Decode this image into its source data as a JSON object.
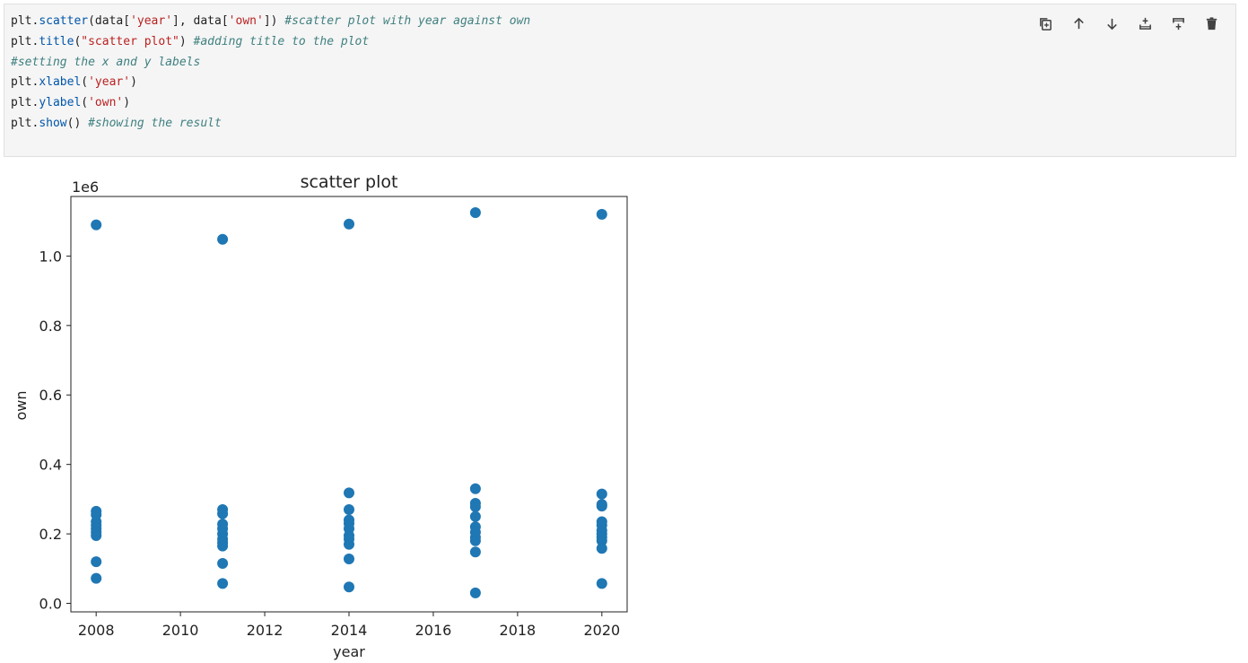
{
  "cell": {
    "code_lines": [
      [
        {
          "t": "plt.",
          "c": ""
        },
        {
          "t": "scatter",
          "c": "fn"
        },
        {
          "t": "(data[",
          "c": ""
        },
        {
          "t": "'year'",
          "c": "st"
        },
        {
          "t": "], data[",
          "c": ""
        },
        {
          "t": "'own'",
          "c": "st"
        },
        {
          "t": "]) ",
          "c": ""
        },
        {
          "t": "#scatter plot with year against own",
          "c": "cm"
        }
      ],
      [
        {
          "t": "plt.",
          "c": ""
        },
        {
          "t": "title",
          "c": "fn"
        },
        {
          "t": "(",
          "c": ""
        },
        {
          "t": "\"scatter plot\"",
          "c": "st"
        },
        {
          "t": ") ",
          "c": ""
        },
        {
          "t": "#adding title to the plot",
          "c": "cm"
        }
      ],
      [
        {
          "t": "#setting the x and y labels",
          "c": "cm"
        }
      ],
      [
        {
          "t": "plt.",
          "c": ""
        },
        {
          "t": "xlabel",
          "c": "fn"
        },
        {
          "t": "(",
          "c": ""
        },
        {
          "t": "'year'",
          "c": "st"
        },
        {
          "t": ")",
          "c": ""
        }
      ],
      [
        {
          "t": "plt.",
          "c": ""
        },
        {
          "t": "ylabel",
          "c": "fn"
        },
        {
          "t": "(",
          "c": ""
        },
        {
          "t": "'own'",
          "c": "st"
        },
        {
          "t": ")",
          "c": ""
        }
      ],
      [
        {
          "t": "plt.",
          "c": ""
        },
        {
          "t": "show",
          "c": "fn"
        },
        {
          "t": "() ",
          "c": ""
        },
        {
          "t": "#showing the result",
          "c": "cm"
        }
      ]
    ],
    "toolbar": [
      "duplicate-icon",
      "arrow-up-icon",
      "arrow-down-icon",
      "insert-above-icon",
      "insert-below-icon",
      "trash-icon"
    ]
  },
  "chart_data": {
    "type": "scatter",
    "title": "scatter plot",
    "xlabel": "year",
    "ylabel": "own",
    "y_offset_label": "1e6",
    "xlim": [
      2007.4,
      2020.6
    ],
    "ylim": [
      -0.0245,
      1.1715
    ],
    "x_ticks": [
      2008,
      2010,
      2012,
      2014,
      2016,
      2018,
      2020
    ],
    "y_ticks": [
      0.0,
      0.2,
      0.4,
      0.6,
      0.8,
      1.0
    ],
    "y_tick_labels": [
      "0.0",
      "0.2",
      "0.4",
      "0.6",
      "0.8",
      "1.0"
    ],
    "color": "#1f77b4",
    "grid": false,
    "points": [
      {
        "x": 2008,
        "y": 1.09
      },
      {
        "x": 2008,
        "y": 0.265
      },
      {
        "x": 2008,
        "y": 0.255
      },
      {
        "x": 2008,
        "y": 0.235
      },
      {
        "x": 2008,
        "y": 0.225
      },
      {
        "x": 2008,
        "y": 0.215
      },
      {
        "x": 2008,
        "y": 0.205
      },
      {
        "x": 2008,
        "y": 0.195
      },
      {
        "x": 2008,
        "y": 0.12
      },
      {
        "x": 2008,
        "y": 0.072
      },
      {
        "x": 2011,
        "y": 1.048
      },
      {
        "x": 2011,
        "y": 0.27
      },
      {
        "x": 2011,
        "y": 0.258
      },
      {
        "x": 2011,
        "y": 0.228
      },
      {
        "x": 2011,
        "y": 0.215
      },
      {
        "x": 2011,
        "y": 0.2
      },
      {
        "x": 2011,
        "y": 0.185
      },
      {
        "x": 2011,
        "y": 0.175
      },
      {
        "x": 2011,
        "y": 0.165
      },
      {
        "x": 2011,
        "y": 0.115
      },
      {
        "x": 2011,
        "y": 0.057
      },
      {
        "x": 2014,
        "y": 1.092
      },
      {
        "x": 2014,
        "y": 0.318
      },
      {
        "x": 2014,
        "y": 0.27
      },
      {
        "x": 2014,
        "y": 0.24
      },
      {
        "x": 2014,
        "y": 0.23
      },
      {
        "x": 2014,
        "y": 0.215
      },
      {
        "x": 2014,
        "y": 0.195
      },
      {
        "x": 2014,
        "y": 0.185
      },
      {
        "x": 2014,
        "y": 0.17
      },
      {
        "x": 2014,
        "y": 0.128
      },
      {
        "x": 2014,
        "y": 0.047
      },
      {
        "x": 2017,
        "y": 1.125
      },
      {
        "x": 2017,
        "y": 0.33
      },
      {
        "x": 2017,
        "y": 0.288
      },
      {
        "x": 2017,
        "y": 0.278
      },
      {
        "x": 2017,
        "y": 0.25
      },
      {
        "x": 2017,
        "y": 0.22
      },
      {
        "x": 2017,
        "y": 0.205
      },
      {
        "x": 2017,
        "y": 0.19
      },
      {
        "x": 2017,
        "y": 0.18
      },
      {
        "x": 2017,
        "y": 0.148
      },
      {
        "x": 2017,
        "y": 0.03
      },
      {
        "x": 2020,
        "y": 1.12
      },
      {
        "x": 2020,
        "y": 0.315
      },
      {
        "x": 2020,
        "y": 0.285
      },
      {
        "x": 2020,
        "y": 0.28
      },
      {
        "x": 2020,
        "y": 0.235
      },
      {
        "x": 2020,
        "y": 0.225
      },
      {
        "x": 2020,
        "y": 0.21
      },
      {
        "x": 2020,
        "y": 0.2
      },
      {
        "x": 2020,
        "y": 0.19
      },
      {
        "x": 2020,
        "y": 0.18
      },
      {
        "x": 2020,
        "y": 0.158
      },
      {
        "x": 2020,
        "y": 0.057
      }
    ]
  }
}
